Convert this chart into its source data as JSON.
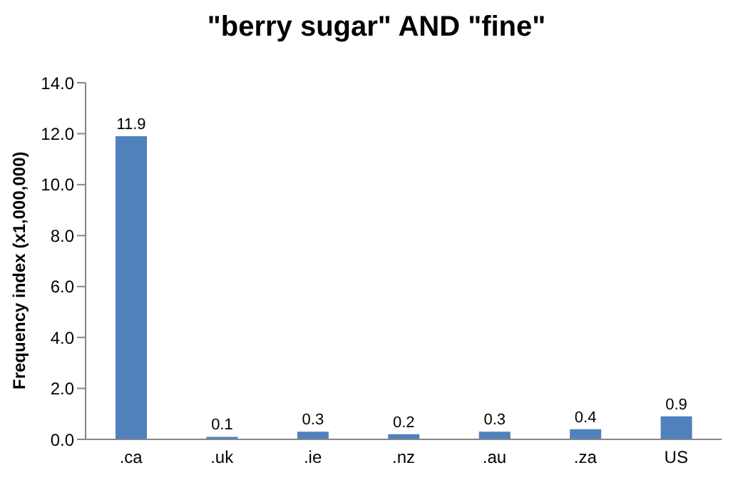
{
  "chart_data": {
    "type": "bar",
    "title": "\"berry sugar\" AND \"fine\"",
    "ylabel": "Frequency index (x1,000,000)",
    "categories": [
      ".ca",
      ".uk",
      ".ie",
      ".nz",
      ".au",
      ".za",
      "US"
    ],
    "values": [
      11.9,
      0.1,
      0.3,
      0.2,
      0.3,
      0.4,
      0.9
    ],
    "color": "#4f81bd",
    "ylim": [
      0,
      14
    ],
    "yticks": [
      {
        "value": 0,
        "label": "0.0"
      },
      {
        "value": 2,
        "label": "2.0"
      },
      {
        "value": 4,
        "label": "4.0"
      },
      {
        "value": 6,
        "label": "6.0"
      },
      {
        "value": 8,
        "label": "8.0"
      },
      {
        "value": 10,
        "label": "10.0"
      },
      {
        "value": 12,
        "label": "12.0"
      },
      {
        "value": 14,
        "label": "14.0"
      }
    ],
    "data_labels": true
  }
}
